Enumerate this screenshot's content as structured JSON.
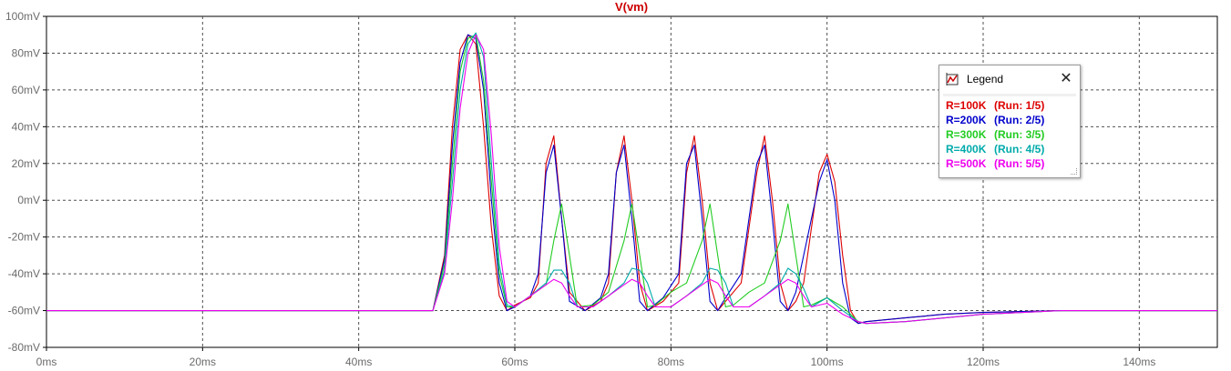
{
  "chart_data": {
    "type": "line",
    "title": "V(vm)",
    "title_color": "#cc0000",
    "x_unit": "ms",
    "y_unit": "mV",
    "xlim": [
      0,
      150
    ],
    "ylim": [
      -80,
      100
    ],
    "x_ticks": [
      0,
      20,
      40,
      60,
      80,
      100,
      120,
      140
    ],
    "y_ticks": [
      -80,
      -60,
      -40,
      -20,
      0,
      20,
      40,
      60,
      80,
      100
    ],
    "x_tick_labels": [
      "0ms",
      "20ms",
      "40ms",
      "60ms",
      "80ms",
      "100ms",
      "120ms",
      "140ms"
    ],
    "y_tick_labels": [
      "-80mV",
      "-60mV",
      "-40mV",
      "-20mV",
      "0mV",
      "20mV",
      "40mV",
      "60mV",
      "80mV",
      "100mV"
    ],
    "grid": true,
    "grid_style": "dashed",
    "legend_placement": "top-right",
    "series": [
      {
        "name": "R=100K",
        "color": "#dd0000",
        "x": [
          0,
          49.5,
          51,
          52,
          53,
          54,
          55,
          56,
          57,
          58,
          59,
          60,
          62,
          63,
          64,
          65,
          66,
          67,
          69,
          71,
          72,
          73,
          74,
          75,
          76,
          77,
          79,
          81,
          82,
          83,
          84,
          85,
          86,
          87,
          89,
          91,
          92,
          93,
          94,
          95,
          96,
          97,
          99,
          100,
          101,
          102,
          103,
          104,
          105,
          110,
          115,
          120,
          130,
          150
        ],
        "y": [
          -60,
          -60,
          -30,
          40,
          82,
          90,
          85,
          40,
          -15,
          -52,
          -60,
          -57,
          -53,
          -45,
          20,
          35,
          -10,
          -50,
          -60,
          -55,
          -45,
          15,
          35,
          0,
          -45,
          -60,
          -55,
          -45,
          15,
          35,
          0,
          -45,
          -60,
          -55,
          -45,
          15,
          35,
          0,
          -45,
          -60,
          -55,
          -45,
          15,
          25,
          10,
          -30,
          -60,
          -67,
          -66,
          -64,
          -62,
          -61,
          -60,
          -60
        ]
      },
      {
        "name": "R=200K",
        "color": "#0000cc",
        "x": [
          0,
          49.5,
          51,
          52,
          53,
          54,
          55,
          56,
          57,
          58,
          59,
          60,
          62,
          63,
          64,
          65,
          66,
          67,
          69,
          71,
          72,
          73,
          74,
          75,
          76,
          77,
          79,
          81,
          82,
          83,
          84,
          85,
          86,
          87,
          89,
          91,
          92,
          93,
          94,
          95,
          96,
          97,
          99,
          100,
          101,
          102,
          103,
          104,
          105,
          110,
          115,
          120,
          130,
          150
        ],
        "y": [
          -60,
          -60,
          -32,
          30,
          75,
          90,
          88,
          60,
          0,
          -45,
          -60,
          -58,
          -52,
          -40,
          15,
          30,
          -10,
          -55,
          -60,
          -53,
          -40,
          15,
          30,
          -10,
          -55,
          -60,
          -53,
          -40,
          20,
          30,
          -10,
          -55,
          -60,
          -53,
          -40,
          20,
          30,
          -10,
          -55,
          -60,
          -50,
          -30,
          10,
          22,
          0,
          -45,
          -64,
          -67,
          -66,
          -64,
          -62,
          -61,
          -60,
          -60
        ]
      },
      {
        "name": "R=300K",
        "color": "#22cc22",
        "x": [
          0,
          49.5,
          51,
          52,
          53,
          54,
          55,
          56,
          57,
          58,
          59,
          60,
          62,
          64,
          65,
          66,
          67,
          68,
          70,
          72,
          74,
          75,
          76,
          77,
          78,
          80,
          82,
          84,
          85,
          86,
          87,
          88,
          90,
          92,
          94,
          95,
          96,
          97,
          98,
          100,
          102,
          103,
          104,
          105,
          110,
          120,
          130,
          150
        ],
        "y": [
          -60,
          -60,
          -35,
          20,
          70,
          88,
          90,
          65,
          10,
          -40,
          -58,
          -58,
          -52,
          -46,
          -22,
          -2,
          -30,
          -58,
          -57,
          -50,
          -22,
          -2,
          -30,
          -58,
          -57,
          -50,
          -45,
          -22,
          -2,
          -30,
          -58,
          -57,
          -50,
          -45,
          -22,
          -2,
          -30,
          -58,
          -57,
          -53,
          -58,
          -62,
          -66,
          -67,
          -66,
          -62,
          -60,
          -60
        ]
      },
      {
        "name": "R=400K",
        "color": "#00aaaa",
        "x": [
          0,
          49.5,
          51,
          52,
          53,
          54,
          55,
          56,
          57,
          58,
          59,
          60,
          62,
          64,
          65,
          66,
          67,
          68,
          70,
          72,
          74,
          75,
          76,
          77,
          78,
          80,
          82,
          84,
          85,
          86,
          87,
          88,
          90,
          92,
          94,
          95,
          96,
          97,
          98,
          100,
          102,
          103,
          104,
          105,
          110,
          120,
          130,
          150
        ],
        "y": [
          -60,
          -60,
          -38,
          10,
          60,
          85,
          91,
          78,
          20,
          -35,
          -57,
          -58,
          -52,
          -45,
          -38,
          -38,
          -45,
          -58,
          -58,
          -52,
          -45,
          -37,
          -38,
          -45,
          -58,
          -58,
          -52,
          -45,
          -37,
          -38,
          -45,
          -58,
          -58,
          -52,
          -45,
          -37,
          -40,
          -48,
          -58,
          -53,
          -60,
          -63,
          -66,
          -67,
          -66,
          -62,
          -60,
          -60
        ]
      },
      {
        "name": "R=500K",
        "color": "#ee00ee",
        "x": [
          0,
          49.5,
          51,
          52,
          53,
          54,
          55,
          56,
          57,
          58,
          59,
          60,
          62,
          64,
          65,
          66,
          67,
          68,
          70,
          72,
          74,
          75,
          76,
          77,
          78,
          80,
          82,
          84,
          85,
          86,
          87,
          88,
          90,
          92,
          94,
          95,
          96,
          97,
          98,
          100,
          102,
          103,
          104,
          105,
          110,
          120,
          130,
          150
        ],
        "y": [
          -60,
          -60,
          -40,
          0,
          50,
          80,
          90,
          82,
          35,
          -25,
          -55,
          -58,
          -52,
          -46,
          -43,
          -45,
          -52,
          -58,
          -58,
          -52,
          -46,
          -43,
          -45,
          -52,
          -58,
          -58,
          -52,
          -46,
          -43,
          -45,
          -52,
          -58,
          -58,
          -52,
          -46,
          -43,
          -45,
          -52,
          -58,
          -56,
          -62,
          -64,
          -66,
          -67,
          -66,
          -62,
          -60,
          -60
        ]
      }
    ]
  },
  "legend": {
    "title": "Legend",
    "close_symbol": "✕",
    "icon": "legend-icon",
    "entries": [
      {
        "name": "R=100K",
        "run": "(Run: 1/5)",
        "color": "#dd0000"
      },
      {
        "name": "R=200K",
        "run": "(Run: 2/5)",
        "color": "#0000cc"
      },
      {
        "name": "R=300K",
        "run": "(Run: 3/5)",
        "color": "#22cc22"
      },
      {
        "name": "R=400K",
        "run": "(Run: 4/5)",
        "color": "#00aaaa"
      },
      {
        "name": "R=500K",
        "run": "(Run: 5/5)",
        "color": "#ee00ee"
      }
    ]
  }
}
